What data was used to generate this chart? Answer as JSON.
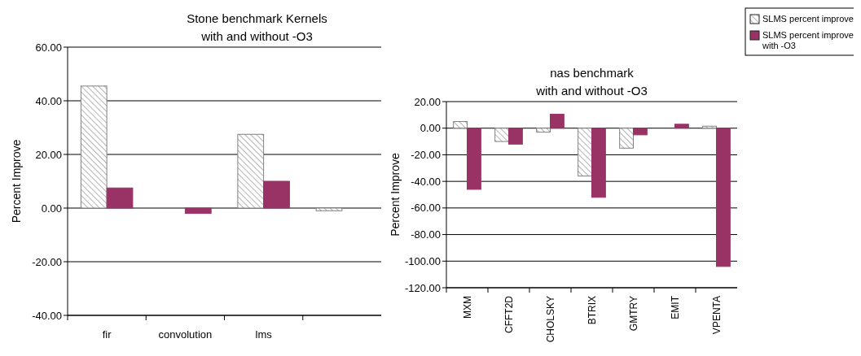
{
  "chart_data": [
    {
      "type": "bar",
      "title": "Stone benchmark Kernels",
      "subtitle": "with and without -O3",
      "ylabel": "Percent Improve",
      "categories": [
        "fir",
        "convolution",
        "lms",
        null
      ],
      "series": [
        {
          "color": "#808080",
          "values": [
            45.5,
            0,
            27.5,
            -1
          ]
        },
        {
          "color": "#993366",
          "values": [
            7.5,
            -2,
            10,
            null
          ]
        }
      ],
      "ylim": [
        -40,
        60
      ],
      "yticks": [
        {
          "value": -40,
          "label": "-40.00"
        },
        {
          "value": -20,
          "label": "-20.00"
        },
        {
          "value": 0,
          "label": "0.00"
        },
        {
          "value": 20,
          "label": "20.00"
        },
        {
          "value": 40,
          "label": "40.00"
        },
        {
          "value": 60,
          "label": "60.00"
        }
      ],
      "grid": "y",
      "legend": false
    },
    {
      "type": "bar",
      "title": "nas benchmark",
      "subtitle": "with and without -O3",
      "ylabel": "Percent Improve",
      "categories": [
        "MXM",
        "CFFT2D",
        "CHOLSKY",
        "BTRIX",
        "GMTRY",
        "EMIT",
        "VPENTA"
      ],
      "series": [
        {
          "name": "SLMS percent improve",
          "color": "#808080",
          "values": [
            5,
            -10,
            -3,
            -36,
            -15,
            0,
            1.5
          ]
        },
        {
          "name": "SLMS percent improve with -O3",
          "color": "#993366",
          "values": [
            -46,
            -12,
            10.5,
            -52,
            -5,
            3,
            -104
          ]
        }
      ],
      "ylim": [
        -120,
        20
      ],
      "yticks": [
        {
          "value": -120,
          "label": "-120.00"
        },
        {
          "value": -100,
          "label": "-100.00"
        },
        {
          "value": -80,
          "label": "-80.00"
        },
        {
          "value": -60,
          "label": "-60.00"
        },
        {
          "value": -40,
          "label": "-40.00"
        },
        {
          "value": -20,
          "label": "-20.00"
        },
        {
          "value": 0,
          "label": "0.00"
        },
        {
          "value": 20,
          "label": "20.00"
        }
      ],
      "grid": "y",
      "legend": "top right"
    }
  ]
}
